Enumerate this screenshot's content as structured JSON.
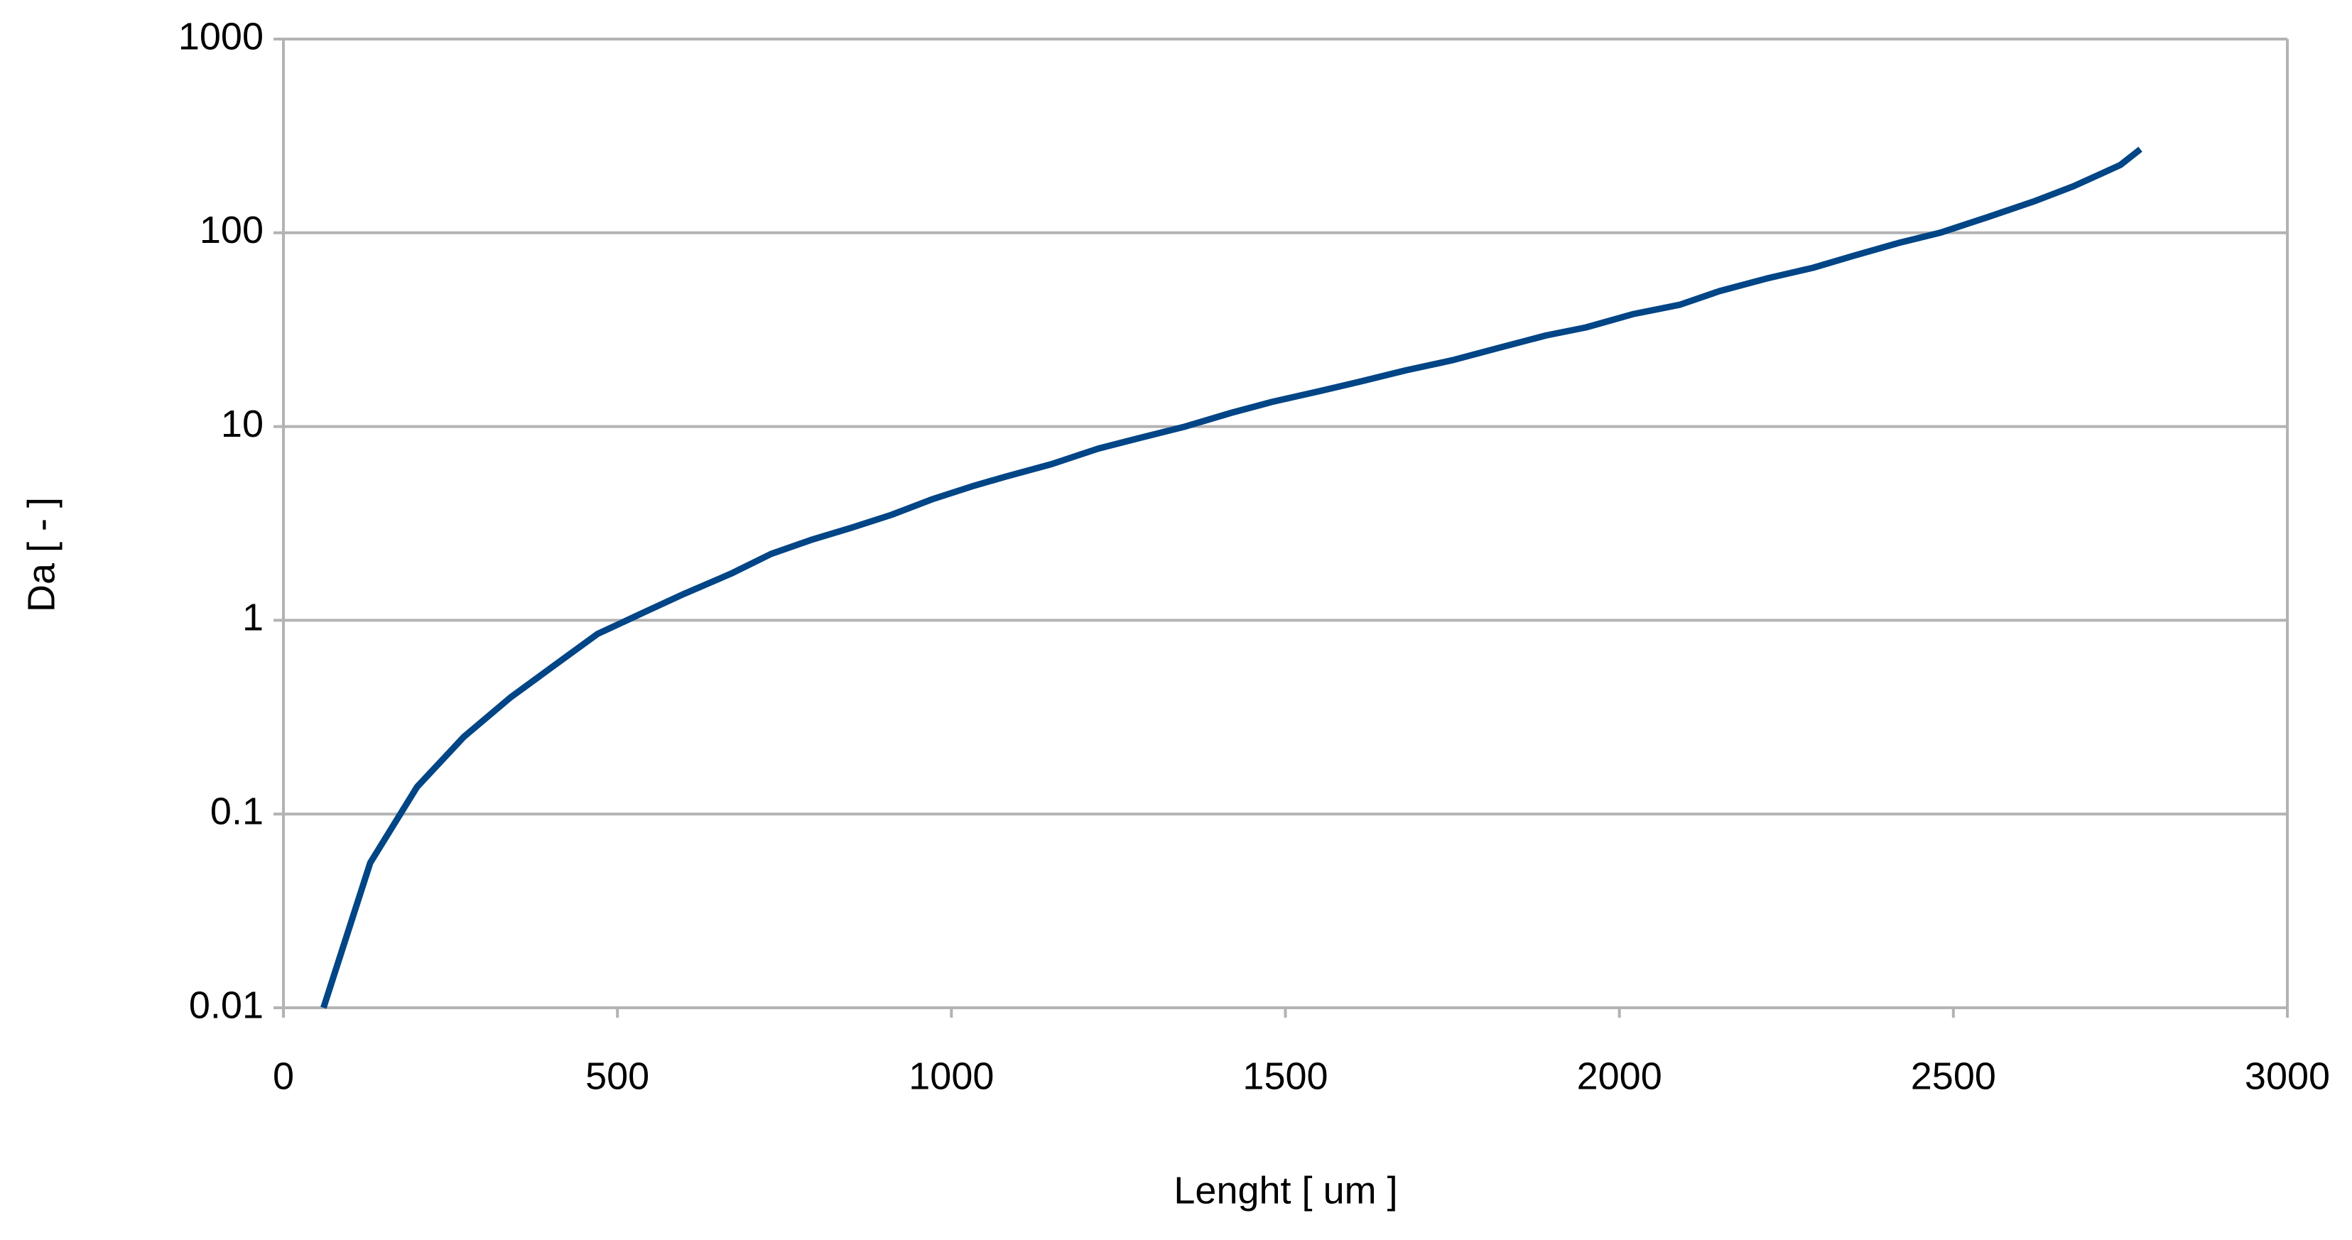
{
  "chart_data": {
    "type": "line",
    "x_label": "Lenght [ um ]",
    "y_label": "Da [ - ]",
    "x": [
      60,
      130,
      200,
      270,
      340,
      410,
      470,
      540,
      600,
      670,
      730,
      790,
      850,
      910,
      970,
      1030,
      1080,
      1150,
      1220,
      1280,
      1350,
      1420,
      1480,
      1550,
      1610,
      1680,
      1750,
      1820,
      1890,
      1950,
      2020,
      2090,
      2150,
      2220,
      2290,
      2350,
      2420,
      2480,
      2550,
      2620,
      2680,
      2750,
      2780
    ],
    "series": [
      {
        "color": "#004586",
        "values": [
          0.01,
          0.056,
          0.138,
          0.25,
          0.4,
          0.6,
          0.85,
          1.1,
          1.37,
          1.74,
          2.2,
          2.6,
          3.0,
          3.5,
          4.2,
          4.9,
          5.5,
          6.4,
          7.7,
          8.7,
          10,
          11.8,
          13.4,
          15.2,
          17,
          19.5,
          22,
          25.5,
          29.5,
          32.5,
          38,
          42.5,
          50,
          58,
          66,
          76,
          89,
          100,
          120,
          145,
          174,
          224,
          270
        ]
      }
    ],
    "xlim": [
      0,
      3000
    ],
    "xticks": [
      0,
      500,
      1000,
      1500,
      2000,
      2500,
      3000
    ],
    "ylim": [
      0.01,
      1000
    ],
    "yticks": [
      0.01,
      0.1,
      1,
      10,
      100,
      1000
    ],
    "ylog": true,
    "grid": true
  }
}
